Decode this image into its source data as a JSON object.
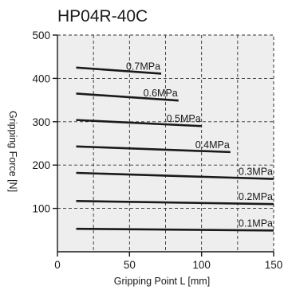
{
  "chart_data": {
    "type": "line",
    "title": "HP04R-40C",
    "xlabel": "Gripping Point L [mm]",
    "ylabel": "Gripping Force [N]",
    "xlim": [
      0,
      150
    ],
    "ylim": [
      0,
      500
    ],
    "xticks": [
      0,
      50,
      100,
      150
    ],
    "yticks": [
      100,
      200,
      300,
      400,
      500
    ],
    "grid": true,
    "grid_style": "dashed",
    "line_color": "#1a1a1a",
    "grid_color": "#333333",
    "plot_background": "#eeeeee",
    "series": [
      {
        "name": "0.7MPa",
        "x": [
          13,
          72
        ],
        "y": [
          425,
          411
        ]
      },
      {
        "name": "0.6MPa",
        "x": [
          13,
          84
        ],
        "y": [
          365,
          349
        ]
      },
      {
        "name": "0.5MPa",
        "x": [
          13,
          100
        ],
        "y": [
          304,
          290
        ]
      },
      {
        "name": "0.4MPa",
        "x": [
          13,
          120
        ],
        "y": [
          243,
          230
        ]
      },
      {
        "name": "0.3MPa",
        "x": [
          13,
          150
        ],
        "y": [
          182,
          168
        ]
      },
      {
        "name": "0.2MPa",
        "x": [
          13,
          150
        ],
        "y": [
          117,
          110
        ]
      },
      {
        "name": "0.1MPa",
        "x": [
          13,
          150
        ],
        "y": [
          53,
          49
        ]
      }
    ]
  }
}
